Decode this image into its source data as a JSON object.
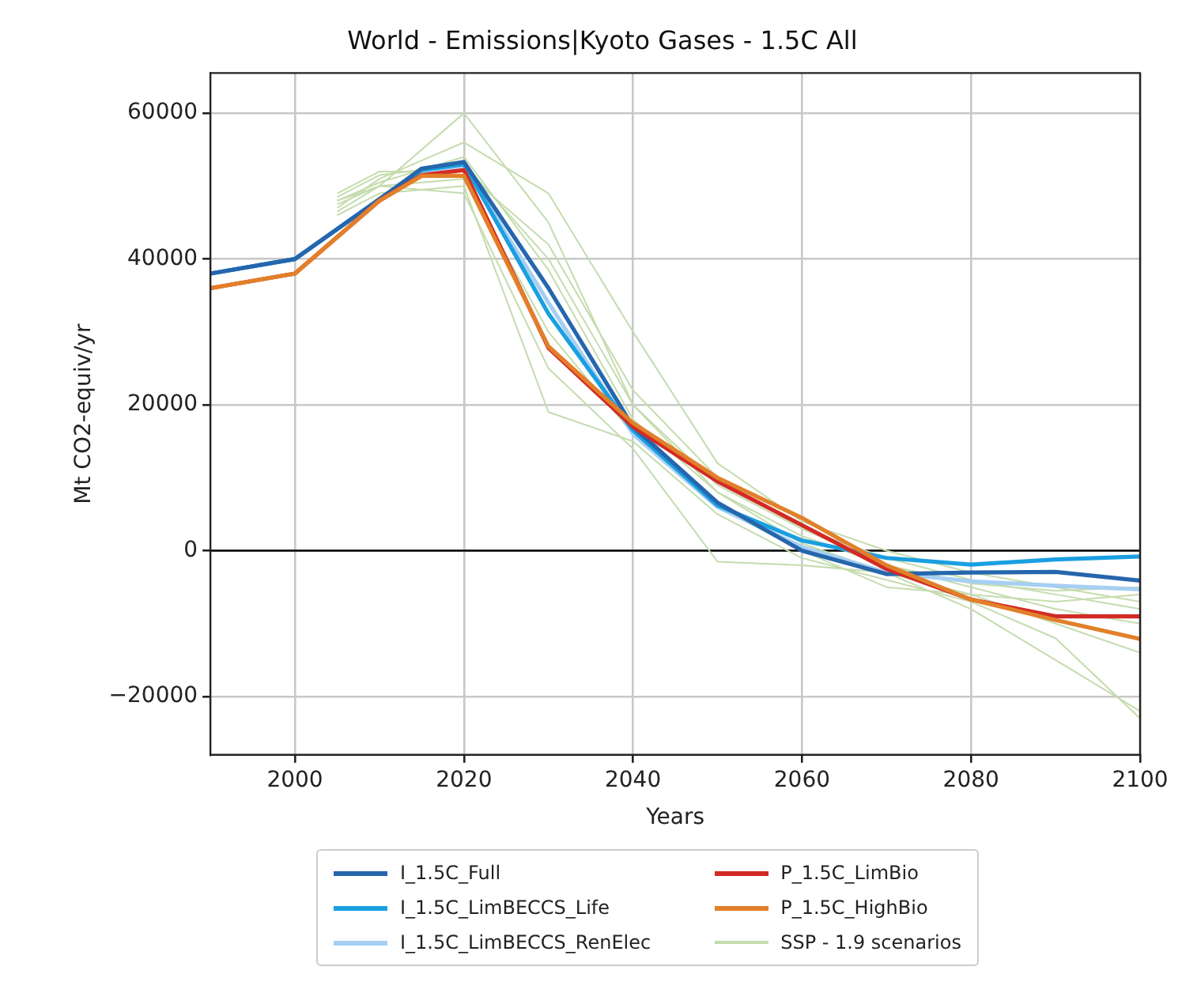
{
  "chart_data": {
    "type": "line",
    "title": "World - Emissions|Kyoto Gases - 1.5C All",
    "xlabel": "Years",
    "ylabel": "Mt CO2-equiv/yr",
    "xlim": [
      1990,
      2100
    ],
    "xticks": [
      2000,
      2020,
      2040,
      2060,
      2080,
      2100
    ],
    "ylim": [
      -28000,
      65500
    ],
    "yticks": [
      {
        "value": -20000,
        "label": "−20000"
      },
      0,
      20000,
      40000,
      60000
    ],
    "grid": true,
    "legend": "bottom",
    "marker": "none",
    "line_style": "solid",
    "ref_lines": [
      {
        "axis": "y",
        "value": 0,
        "color": "#000000"
      }
    ],
    "series": [
      {
        "color": "#c5dcae",
        "x": [
          2005,
          2010,
          2020,
          2030,
          2040,
          2050,
          2060,
          2070,
          2080,
          2090,
          2100
        ],
        "values": [
          48000,
          50000,
          60000,
          45000,
          20000,
          8000,
          2000,
          -2000,
          -5000,
          -8000,
          -10000
        ]
      },
      {
        "color": "#c5dcae",
        "x": [
          2005,
          2010,
          2020,
          2030,
          2040,
          2050,
          2060,
          2070,
          2080,
          2090,
          2100
        ],
        "values": [
          47000,
          51000,
          56000,
          49000,
          30000,
          12000,
          4000,
          0,
          -3000,
          -5000,
          -7000
        ]
      },
      {
        "color": "#c5dcae",
        "x": [
          2005,
          2010,
          2020,
          2030,
          2040,
          2050,
          2060,
          2070,
          2080,
          2090,
          2100
        ],
        "values": [
          46000,
          49000,
          50000,
          19000,
          15000,
          5000,
          -1000,
          -4000,
          -7000,
          -12000,
          -23000
        ]
      },
      {
        "color": "#c5dcae",
        "x": [
          2005,
          2010,
          2020,
          2030,
          2040,
          2050,
          2060,
          2070,
          2080,
          2090,
          2100
        ],
        "values": [
          49000,
          52000,
          52000,
          42000,
          22000,
          10000,
          3000,
          -1000,
          -4000,
          -6000,
          -8000
        ]
      },
      {
        "color": "#c5dcae",
        "x": [
          2005,
          2010,
          2020,
          2030,
          2040,
          2050,
          2060,
          2070,
          2080,
          2090,
          2100
        ],
        "values": [
          46500,
          50000,
          49000,
          25000,
          14000,
          -1500,
          -2000,
          -3000,
          -6000,
          -10000,
          -14000
        ]
      },
      {
        "color": "#c5dcae",
        "x": [
          2005,
          2010,
          2020,
          2030,
          2040,
          2050,
          2060,
          2070,
          2080,
          2090,
          2100
        ],
        "values": [
          48000,
          50500,
          54000,
          38500,
          18000,
          8000,
          1000,
          -3000,
          -8000,
          -15000,
          -22000
        ]
      },
      {
        "color": "#c5dcae",
        "x": [
          2005,
          2010,
          2020,
          2030,
          2040,
          2050,
          2060,
          2070,
          2080,
          2090,
          2100
        ],
        "values": [
          47500,
          50000,
          51000,
          30000,
          16000,
          6000,
          0,
          -5000,
          -6000,
          -7000,
          -6000
        ]
      },
      {
        "name": "SSP - 1.9 scenarios",
        "color": "#c5dcae",
        "x": [
          2005,
          2010,
          2020,
          2030,
          2040,
          2050,
          2060,
          2070,
          2080,
          2090,
          2100
        ],
        "values": [
          48500,
          51500,
          53000,
          40000,
          20000,
          9000,
          3000,
          -2000,
          -4500,
          -5500,
          -5000
        ]
      },
      {
        "name": "I_1.5C_LimBECCS_RenElec",
        "color": "#a6cff2",
        "x": [
          1990,
          2000,
          2010,
          2015,
          2020,
          2030,
          2040,
          2050,
          2060,
          2070,
          2080,
          2090,
          2100
        ],
        "values": [
          38000,
          40000,
          48200,
          52000,
          52800,
          34000,
          16000,
          6000,
          500,
          -3000,
          -4200,
          -4800,
          -5300
        ]
      },
      {
        "name": "I_1.5C_LimBECCS_Life",
        "color": "#1a9fe0",
        "x": [
          1990,
          2000,
          2010,
          2015,
          2020,
          2030,
          2040,
          2050,
          2060,
          2070,
          2080,
          2090,
          2100
        ],
        "values": [
          38000,
          40000,
          48200,
          52200,
          53000,
          32500,
          16500,
          6200,
          1400,
          -1000,
          -1900,
          -1200,
          -800
        ]
      },
      {
        "name": "I_1.5C_Full",
        "color": "#2566ad",
        "x": [
          1990,
          2000,
          2010,
          2015,
          2020,
          2030,
          2040,
          2050,
          2060,
          2070,
          2080,
          2090,
          2100
        ],
        "values": [
          38000,
          40000,
          48200,
          52400,
          53300,
          36000,
          17000,
          6600,
          0,
          -3200,
          -3000,
          -2900,
          -4100
        ]
      },
      {
        "name": "P_1.5C_LimBio",
        "color": "#d22b25",
        "x": [
          1990,
          2000,
          2010,
          2015,
          2020,
          2030,
          2040,
          2050,
          2060,
          2070,
          2080,
          2090,
          2100
        ],
        "values": [
          36000,
          38000,
          48000,
          51500,
          52200,
          27800,
          17000,
          9500,
          3500,
          -2500,
          -6700,
          -9000,
          -9000
        ]
      },
      {
        "name": "P_1.5C_HighBio",
        "color": "#e2802a",
        "x": [
          1990,
          2000,
          2010,
          2015,
          2020,
          2030,
          2040,
          2050,
          2060,
          2070,
          2080,
          2090,
          2100
        ],
        "values": [
          36000,
          38000,
          48000,
          51400,
          51400,
          28000,
          17500,
          10000,
          4500,
          -2000,
          -6700,
          -9500,
          -12100
        ]
      }
    ]
  }
}
